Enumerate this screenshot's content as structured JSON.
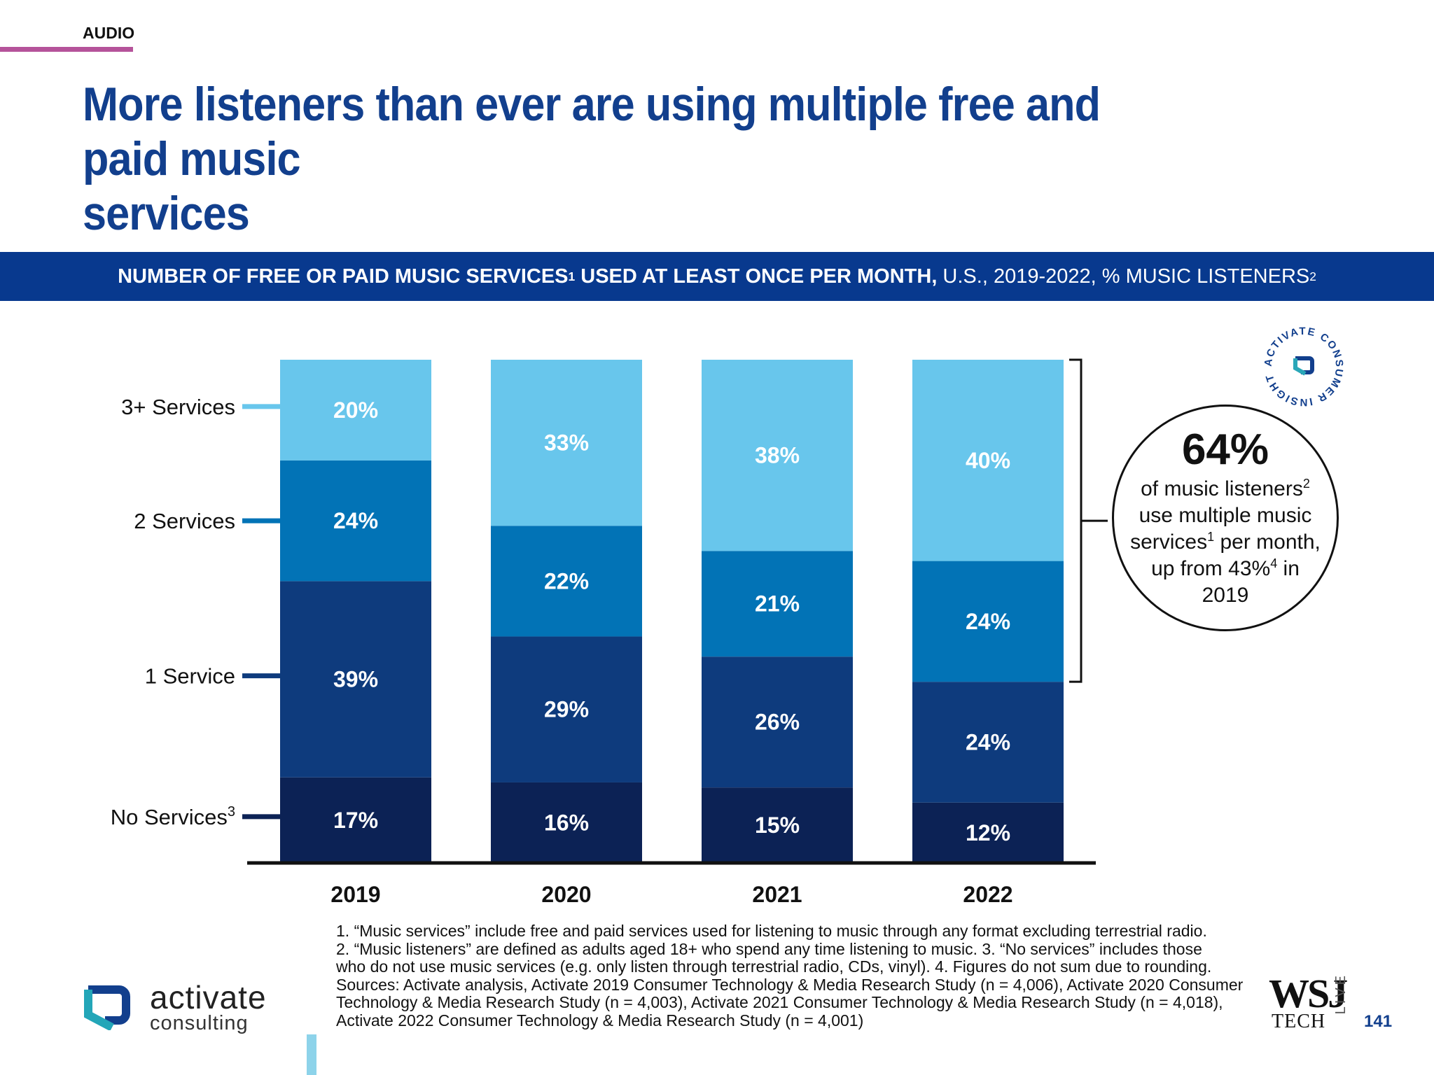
{
  "header": {
    "section_label": "AUDIO",
    "title_line1": "More listeners than ever are using multiple free and paid music",
    "title_line2": "services"
  },
  "banner": {
    "bold_text": "NUMBER OF FREE OR PAID MUSIC SERVICES",
    "bold_sup": "1",
    "bold_text2": " USED AT LEAST ONCE PER MONTH,",
    "regular_text": " U.S., 2019-2022, % MUSIC LISTENERS",
    "regular_sup": "2"
  },
  "chart_data": {
    "type": "bar",
    "stacked": true,
    "categories": [
      "2019",
      "2020",
      "2021",
      "2022"
    ],
    "series": [
      {
        "name": "No Services",
        "name_sup": "3",
        "values": [
          17,
          16,
          15,
          12
        ],
        "labels": [
          "17%",
          "16%",
          "15%",
          "12%"
        ],
        "color": "#0c2255"
      },
      {
        "name": "1 Service",
        "name_sup": "",
        "values": [
          39,
          29,
          26,
          24
        ],
        "labels": [
          "39%",
          "29%",
          "26%",
          "24%"
        ],
        "color": "#0e3b7d"
      },
      {
        "name": "2 Services",
        "name_sup": "",
        "values": [
          24,
          22,
          21,
          24
        ],
        "labels": [
          "24%",
          "22%",
          "21%",
          "24%"
        ],
        "color": "#0273b6"
      },
      {
        "name": "3+ Services",
        "name_sup": "",
        "values": [
          20,
          33,
          38,
          40
        ],
        "labels": [
          "20%",
          "33%",
          "38%",
          "40%"
        ],
        "color": "#68c6ec"
      }
    ],
    "ylim": [
      0,
      100
    ],
    "grid": false,
    "legend": "left"
  },
  "callout": {
    "big": "64%",
    "line1": "of music listeners",
    "line1_sup": "2",
    "line2": "use multiple music",
    "line3": "services",
    "line3_sup": "1",
    "line3_rest": " per month,",
    "line4": "up from 43%",
    "line4_sup": "4",
    "line4_rest": " in",
    "line5": "2019"
  },
  "badge": {
    "ring_text": "ACTIVATE CONSUMER INSIGHT ",
    "color": "#123f8d"
  },
  "notes": [
    "1. “Music services” include free and paid services used for listening to music through any format excluding terrestrial radio.",
    "2. “Music listeners” are defined as adults aged 18+ who spend any time listening to music.  3. “No services” includes those",
    "who do not use music services (e.g. only listen through terrestrial radio, CDs, vinyl).  4. Figures do not sum due to rounding.",
    "Sources: Activate analysis, Activate 2019 Consumer Technology & Media Research Study (n = 4,006), Activate 2020 Consumer",
    "Technology & Media Research Study (n = 4,003), Activate 2021 Consumer Technology & Media Research Study (n = 4,018),",
    "Activate 2022 Consumer Technology & Media Research Study (n = 4,001)"
  ],
  "footer": {
    "logo_word1": "activate",
    "logo_word2": "consulting",
    "wsj": "WSJ",
    "tech": "TECH",
    "live": "LIVE",
    "page_number": "141"
  },
  "colors": {
    "title": "#123f8d",
    "banner": "#08398e",
    "accent_rule": "#b5539a"
  }
}
